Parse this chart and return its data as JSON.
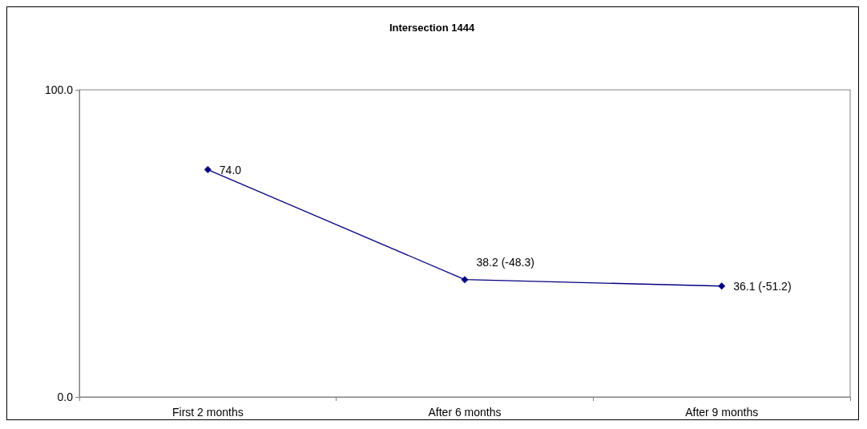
{
  "chart_data": {
    "type": "line",
    "title": "Intersection 1444",
    "categories": [
      "First 2 months",
      "After 6 months",
      "After 9 months"
    ],
    "series": [
      {
        "color": "#000080",
        "values": [
          74.0,
          38.2,
          36.1
        ],
        "value_labels": [
          "74.0",
          "38.2 (-48.3)",
          "36.1 (-51.2)"
        ]
      }
    ],
    "ylim": [
      0,
      100
    ],
    "yticks": [
      {
        "value": 0,
        "label": "0.0"
      },
      {
        "value": 100,
        "label": "100.0"
      }
    ],
    "grid": false,
    "marker": "diamond",
    "line_style": "solid"
  }
}
